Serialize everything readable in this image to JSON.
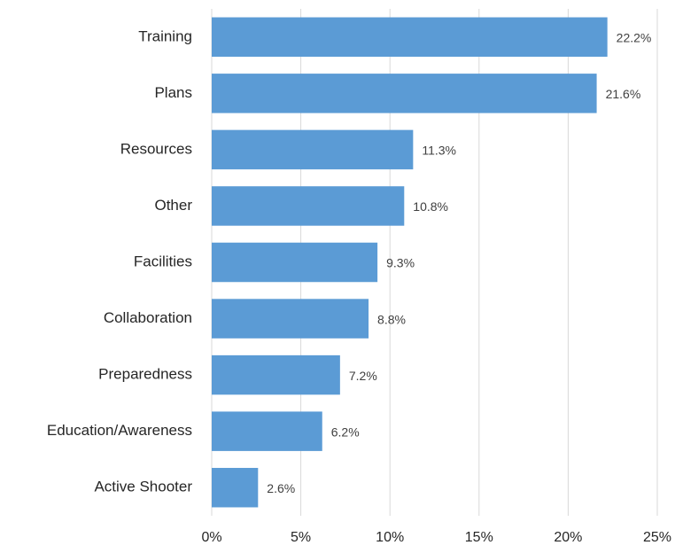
{
  "chart_data": {
    "type": "bar",
    "orientation": "horizontal",
    "categories": [
      "Training",
      "Plans",
      "Resources",
      "Other",
      "Facilities",
      "Collaboration",
      "Preparedness",
      "Education/Awareness",
      "Active Shooter"
    ],
    "values": [
      22.2,
      21.6,
      11.3,
      10.8,
      9.3,
      8.8,
      7.2,
      6.2,
      2.6
    ],
    "value_labels": [
      "22.2%",
      "21.6%",
      "11.3%",
      "10.8%",
      "9.3%",
      "8.8%",
      "7.2%",
      "6.2%",
      "2.6%"
    ],
    "color": "#5b9bd5",
    "xlim": [
      0,
      25
    ],
    "xticks": [
      {
        "value": 0,
        "label": "0%"
      },
      {
        "value": 5,
        "label": "5%"
      },
      {
        "value": 10,
        "label": "10%"
      },
      {
        "value": 15,
        "label": "15%"
      },
      {
        "value": 20,
        "label": "20%"
      },
      {
        "value": 25,
        "label": "25%"
      }
    ],
    "grid": true
  }
}
